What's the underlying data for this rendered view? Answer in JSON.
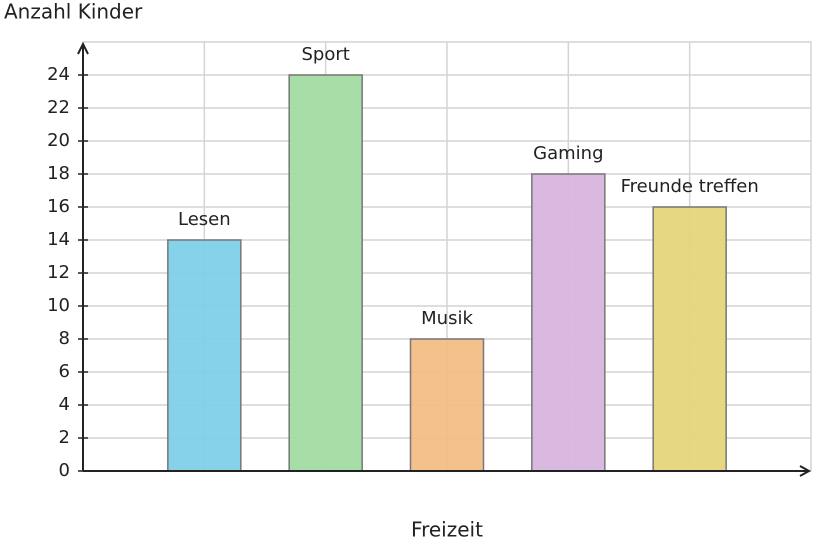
{
  "chart_data": {
    "type": "bar",
    "y_label": "Anzahl Kinder",
    "x_label": "Freizeit",
    "categories": [
      "Lesen",
      "Sport",
      "Musik",
      "Gaming",
      "Freunde treffen"
    ],
    "values": [
      14,
      24,
      8,
      18,
      16
    ],
    "colors": [
      "#80d0ea",
      "#a2dca3",
      "#f3bd86",
      "#d8b5de",
      "#e5d57c"
    ],
    "ylim": [
      0,
      26
    ],
    "yticks": [
      0,
      2,
      4,
      6,
      8,
      10,
      12,
      14,
      16,
      18,
      20,
      22,
      24
    ],
    "grid": true
  }
}
